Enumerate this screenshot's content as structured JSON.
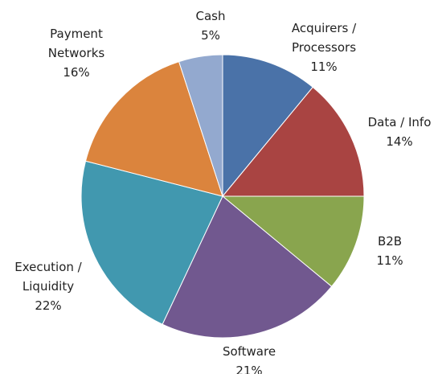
{
  "chart_data": {
    "type": "pie",
    "categories": [
      "Acquirers / Processors",
      "Data / Info",
      "B2B",
      "Software",
      "Execution / Liquidity",
      "Payment Networks",
      "Cash"
    ],
    "values": [
      11,
      14,
      11,
      21,
      22,
      16,
      5
    ],
    "value_labels": [
      "11%",
      "14%",
      "11%",
      "21%",
      "22%",
      "16%",
      "5%"
    ],
    "colors": [
      "#4a72a8",
      "#a94442",
      "#89a54e",
      "#71588f",
      "#4198af",
      "#db843d",
      "#93a9cf"
    ]
  }
}
